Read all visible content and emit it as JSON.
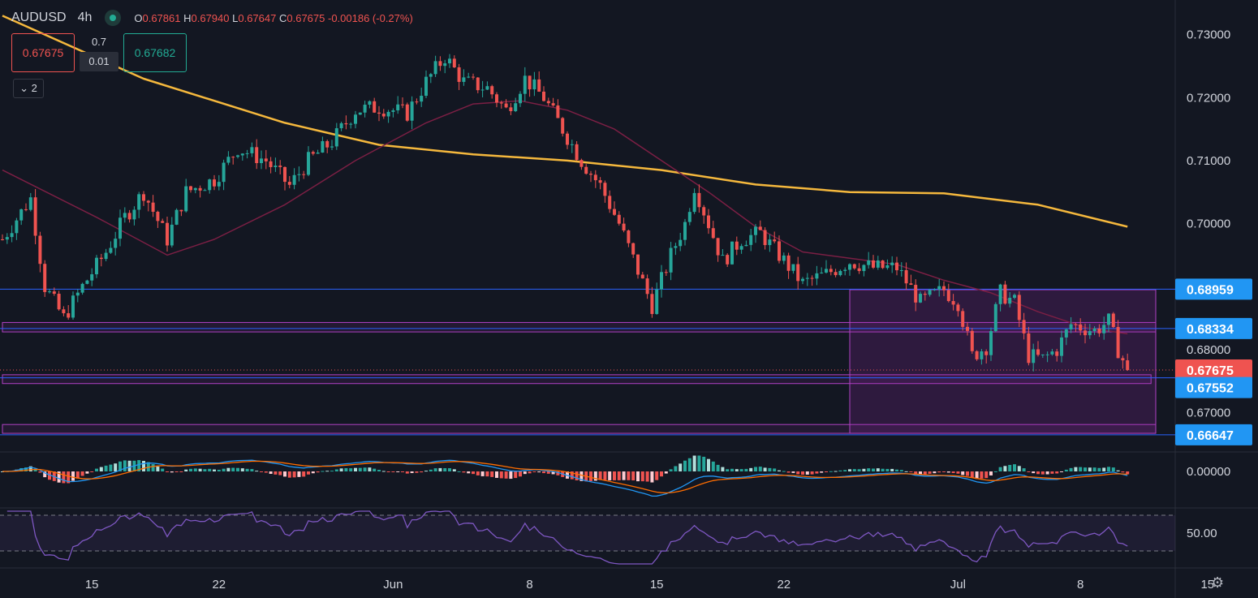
{
  "header": {
    "symbol": "AUDUSD",
    "timeframe": "4h",
    "open_label": "O",
    "open": "0.67861",
    "high_label": "H",
    "high": "0.67940",
    "low_label": "L",
    "low": "0.67647",
    "close_label": "C",
    "close": "0.67675",
    "change": "-0.00186 (-0.27%)"
  },
  "trade_widget": {
    "sell_price": "0.67675",
    "buy_price": "0.67682",
    "lot_size": "0.7",
    "spread": "0.01",
    "collapse_label": "2"
  },
  "colors": {
    "background": "#131722",
    "up": "#26a69a",
    "down": "#ef5350",
    "ma200": "#f5b83d",
    "ma50": "#7b1f44",
    "level_line": "#2962ff",
    "zone": "#9c27b0",
    "macd_line": "#2196f3",
    "signal_line": "#ff6d00",
    "rsi": "#7e57c2"
  },
  "chart_data": {
    "type": "candlestick",
    "title": "AUDUSD 4h",
    "y_axis": {
      "ylim": [
        0.664,
        0.7355
      ],
      "ticks": [
        "0.73000",
        "0.72000",
        "0.71000",
        "0.70000",
        "0.68000",
        "0.67000"
      ]
    },
    "x_axis": {
      "labels": [
        {
          "label": "15",
          "slot": 19
        },
        {
          "label": "22",
          "slot": 46
        },
        {
          "label": "Jun",
          "slot": 83
        },
        {
          "label": "8",
          "slot": 112
        },
        {
          "label": "15",
          "slot": 139
        },
        {
          "label": "22",
          "slot": 166
        },
        {
          "label": "Jul",
          "slot": 203
        },
        {
          "label": "8",
          "slot": 229
        },
        {
          "label": "15",
          "slot": 256
        }
      ]
    },
    "price_levels": [
      {
        "price": 0.68959,
        "label": "0.68959",
        "kind": "line"
      },
      {
        "price": 0.68334,
        "label": "0.68334",
        "kind": "line"
      },
      {
        "price": 0.67675,
        "label": "0.67675",
        "kind": "current"
      },
      {
        "price": 0.67552,
        "label": "0.67552",
        "kind": "line"
      },
      {
        "price": 0.66647,
        "label": "0.66647",
        "kind": "line"
      }
    ],
    "zones": [
      {
        "y_top": 0.6843,
        "y_bottom": 0.6828,
        "x_start_slot": 0,
        "x_end_slot": 245
      },
      {
        "y_top": 0.676,
        "y_bottom": 0.6746,
        "x_start_slot": 0,
        "x_end_slot": 244
      },
      {
        "y_top": 0.6681,
        "y_bottom": 0.6667,
        "x_start_slot": 0,
        "x_end_slot": 245
      },
      {
        "y_top": 0.6895,
        "y_bottom": 0.6667,
        "x_start_slot": 180,
        "x_end_slot": 245
      }
    ],
    "price_path": [
      [
        0,
        0.6975
      ],
      [
        6,
        0.704
      ],
      [
        9,
        0.69
      ],
      [
        13,
        0.685
      ],
      [
        17,
        0.69
      ],
      [
        22,
        0.6955
      ],
      [
        26,
        0.701
      ],
      [
        30,
        0.705
      ],
      [
        35,
        0.6975
      ],
      [
        39,
        0.705
      ],
      [
        45,
        0.707
      ],
      [
        50,
        0.712
      ],
      [
        56,
        0.71
      ],
      [
        61,
        0.706
      ],
      [
        65,
        0.71
      ],
      [
        70,
        0.713
      ],
      [
        75,
        0.718
      ],
      [
        80,
        0.7185
      ],
      [
        86,
        0.7175
      ],
      [
        90,
        0.7225
      ],
      [
        94,
        0.7265
      ],
      [
        98,
        0.7225
      ],
      [
        103,
        0.7215
      ],
      [
        107,
        0.718
      ],
      [
        111,
        0.723
      ],
      [
        115,
        0.72
      ],
      [
        119,
        0.715
      ],
      [
        123,
        0.71
      ],
      [
        127,
        0.706
      ],
      [
        131,
        0.7
      ],
      [
        135,
        0.6925
      ],
      [
        138,
        0.687
      ],
      [
        142,
        0.695
      ],
      [
        145,
        0.7
      ],
      [
        147,
        0.706
      ],
      [
        150,
        0.7
      ],
      [
        153,
        0.694
      ],
      [
        157,
        0.6975
      ],
      [
        161,
        0.6985
      ],
      [
        165,
        0.695
      ],
      [
        170,
        0.6905
      ],
      [
        175,
        0.692
      ],
      [
        180,
        0.694
      ],
      [
        185,
        0.693
      ],
      [
        190,
        0.693
      ],
      [
        195,
        0.6875
      ],
      [
        200,
        0.6895
      ],
      [
        203,
        0.6875
      ],
      [
        206,
        0.679
      ],
      [
        209,
        0.6805
      ],
      [
        212,
        0.689
      ],
      [
        215,
        0.6875
      ],
      [
        218,
        0.679
      ],
      [
        221,
        0.6785
      ],
      [
        224,
        0.68
      ],
      [
        227,
        0.684
      ],
      [
        232,
        0.683
      ],
      [
        235,
        0.6845
      ],
      [
        237,
        0.68
      ],
      [
        239,
        0.67675
      ]
    ],
    "series": [
      {
        "name": "",
        "kind": "ma",
        "color_key": "ma200",
        "points": [
          [
            0,
            0.733
          ],
          [
            30,
            0.723
          ],
          [
            60,
            0.716
          ],
          [
            80,
            0.7125
          ],
          [
            100,
            0.711
          ],
          [
            120,
            0.71
          ],
          [
            140,
            0.7085
          ],
          [
            160,
            0.7062
          ],
          [
            180,
            0.705
          ],
          [
            200,
            0.7048
          ],
          [
            220,
            0.703
          ],
          [
            239,
            0.6995
          ]
        ]
      },
      {
        "name": "",
        "kind": "ma",
        "color_key": "ma50",
        "points": [
          [
            0,
            0.7085
          ],
          [
            20,
            0.701
          ],
          [
            35,
            0.695
          ],
          [
            45,
            0.6975
          ],
          [
            60,
            0.703
          ],
          [
            75,
            0.71
          ],
          [
            90,
            0.716
          ],
          [
            100,
            0.719
          ],
          [
            110,
            0.7195
          ],
          [
            120,
            0.718
          ],
          [
            130,
            0.715
          ],
          [
            140,
            0.71
          ],
          [
            150,
            0.705
          ],
          [
            160,
            0.6995
          ],
          [
            170,
            0.6955
          ],
          [
            180,
            0.6945
          ],
          [
            190,
            0.6935
          ],
          [
            200,
            0.691
          ],
          [
            210,
            0.689
          ],
          [
            220,
            0.686
          ],
          [
            230,
            0.6835
          ],
          [
            239,
            0.6825
          ]
        ]
      }
    ],
    "indicators": {
      "macd": {
        "zero_label": "0.00000"
      },
      "rsi": {
        "level_label": "50.00",
        "upper": 70,
        "lower": 30
      }
    }
  }
}
